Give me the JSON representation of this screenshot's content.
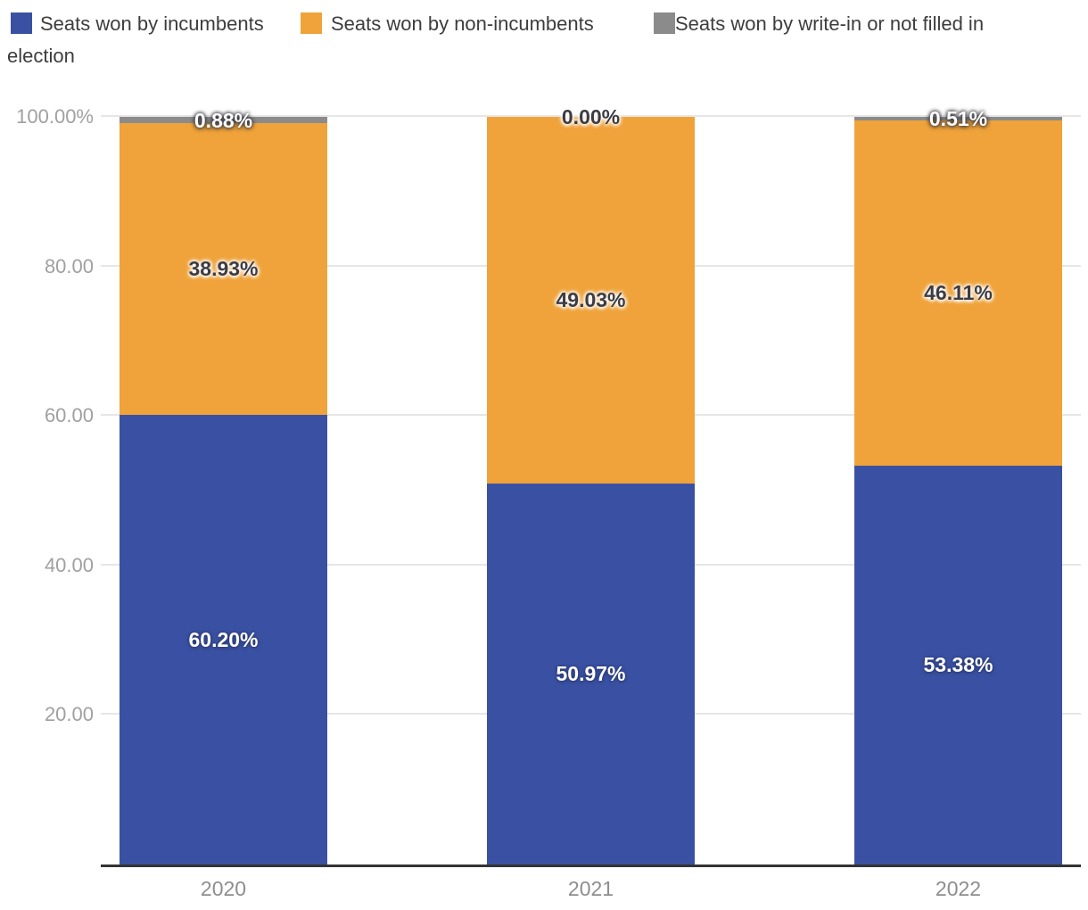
{
  "legend": {
    "items": [
      {
        "label": "Seats won by incumbents"
      },
      {
        "label": "Seats won by non-incumbents"
      },
      {
        "label": "Seats won by write-in or not filled in",
        "label_line2": "election"
      }
    ]
  },
  "chart_data": {
    "type": "bar",
    "stacked": true,
    "title": "",
    "categories": [
      "2020",
      "2021",
      "2022"
    ],
    "series": [
      {
        "key": "incumbents",
        "name": "Seats won by incumbents",
        "color": "#3a51a3",
        "values": [
          60.2,
          50.97,
          53.38
        ],
        "labels": [
          "60.20%",
          "50.97%",
          "53.38%"
        ]
      },
      {
        "key": "non_incumbents",
        "name": "Seats won by non-incumbents",
        "color": "#f0a33a",
        "values": [
          38.93,
          49.03,
          46.11
        ],
        "labels": [
          "38.93%",
          "49.03%",
          "46.11%"
        ]
      },
      {
        "key": "write_in",
        "name": "Seats won by write-in or not filled in election",
        "color": "#8b8b8b",
        "values": [
          0.88,
          0.0,
          0.51
        ],
        "labels": [
          "0.88%",
          "0.00%",
          "0.51%"
        ]
      }
    ],
    "y_axis": {
      "range": [
        0,
        100
      ],
      "grid": true,
      "ticks": [
        {
          "value": 20,
          "label": "20.00"
        },
        {
          "value": 40,
          "label": "40.00"
        },
        {
          "value": 60,
          "label": "60.00"
        },
        {
          "value": 80,
          "label": "80.00"
        },
        {
          "value": 100,
          "label": "100.00%"
        }
      ]
    },
    "legend_position": "top"
  },
  "colors": {
    "grid": "#e6e6e6",
    "baseline": "#333333",
    "axis_text": "#9e9e9e",
    "label_dark": "#3c3c44",
    "label_light": "#ffffff"
  }
}
